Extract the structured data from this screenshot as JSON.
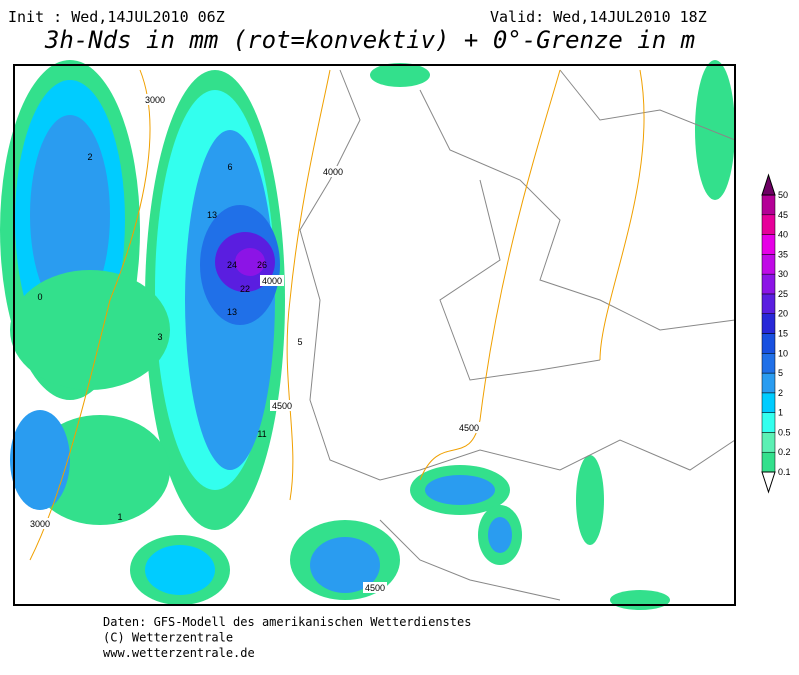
{
  "header": {
    "init": "Init : Wed,14JUL2010 06Z",
    "valid": "Valid: Wed,14JUL2010 18Z",
    "title": "3h-Nds in mm (rot=konvektiv) + 0°-Grenze in m"
  },
  "map": {
    "contour_labels": [
      "3000",
      "4000",
      "4000",
      "4500",
      "4500",
      "3000",
      "4500"
    ],
    "precip_labels": [
      "26",
      "24",
      "22",
      "13",
      "13",
      "11",
      "6",
      "5",
      "3",
      "2",
      "1",
      "0"
    ]
  },
  "colorbar": {
    "levels": [
      0.1,
      0.2,
      0.5,
      1,
      2,
      5,
      10,
      15,
      20,
      25,
      30,
      35,
      40,
      45,
      50
    ],
    "colors": [
      "#33e08c",
      "#5cf0b4",
      "#33ffee",
      "#00ccff",
      "#2a9cf0",
      "#2070e8",
      "#1850e0",
      "#2828d8",
      "#5a1ee0",
      "#8c14e6",
      "#c00ae6",
      "#e600e6",
      "#e6009a",
      "#b40096"
    ]
  },
  "footer": [
    "Daten: GFS-Modell des amerikanischen Wetterdienstes",
    "(C) Wetterzentrale",
    "www.wetterzentrale.de"
  ]
}
